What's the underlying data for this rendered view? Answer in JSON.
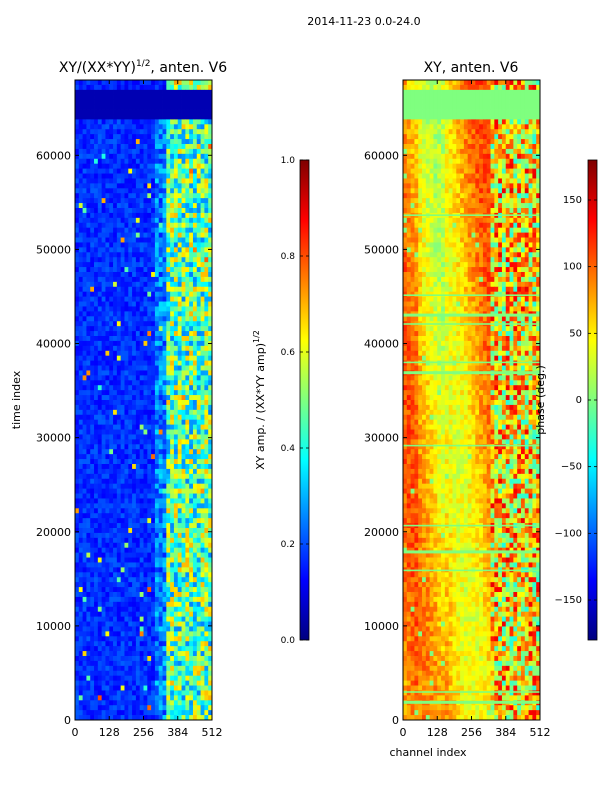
{
  "figure": {
    "title": "2014-11-23 0.0-24.0"
  },
  "chart_data": [
    {
      "type": "heatmap",
      "title": "XY/(XX*YY)",
      "title_superscript": "1/2",
      "title_suffix": ", anten. V6",
      "xlabel": "",
      "ylabel": "time index",
      "xlim": [
        0,
        512
      ],
      "ylim": [
        0,
        68000
      ],
      "xticks": [
        0,
        128,
        256,
        384,
        512
      ],
      "yticks": [
        0,
        10000,
        20000,
        30000,
        40000,
        50000,
        60000
      ],
      "colorbar": {
        "label": "XY amp. / (XX*YY amp)",
        "label_superscript": "1/2",
        "range": [
          0.0,
          1.0
        ],
        "ticks": [
          "0.0",
          "0.2",
          "0.4",
          "0.6",
          "0.8",
          "1.0"
        ],
        "tick_values": [
          0.0,
          0.2,
          0.4,
          0.6,
          0.8,
          1.0
        ]
      }
    },
    {
      "type": "heatmap",
      "title": "XY, anten. V6",
      "xlabel": "channel index",
      "ylabel": "",
      "xlim": [
        0,
        512
      ],
      "ylim": [
        0,
        68000
      ],
      "xticks": [
        0,
        128,
        256,
        384,
        512
      ],
      "yticks": [
        0,
        10000,
        20000,
        30000,
        40000,
        50000,
        60000
      ],
      "colorbar": {
        "label": "phase (deg.)",
        "range": [
          -180,
          180
        ],
        "ticks": [
          "−150",
          "−100",
          "−50",
          "0",
          "50",
          "100",
          "150"
        ],
        "tick_values": [
          -150,
          -100,
          -50,
          0,
          50,
          100,
          150
        ]
      }
    }
  ],
  "colors": {
    "jet": [
      "#00007f",
      "#0000ff",
      "#007fff",
      "#00ffff",
      "#7fff7f",
      "#ffff00",
      "#ff7f00",
      "#ff0000",
      "#7f0000"
    ]
  }
}
